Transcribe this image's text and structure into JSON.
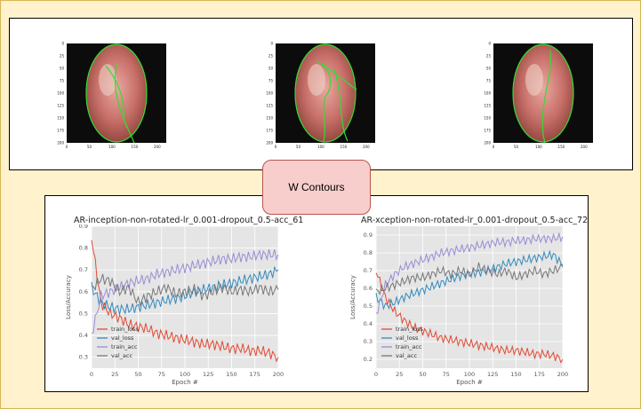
{
  "center_label": "W Contours",
  "images": [
    {
      "name": "endoscopy-image-1",
      "x_ticks": [
        "0",
        "50",
        "100",
        "150",
        "200"
      ],
      "y_ticks": [
        "0",
        "25",
        "50",
        "75",
        "100",
        "125",
        "150",
        "175",
        "200"
      ]
    },
    {
      "name": "endoscopy-image-2",
      "x_ticks": [
        "0",
        "50",
        "100",
        "150",
        "200"
      ],
      "y_ticks": [
        "0",
        "25",
        "50",
        "75",
        "100",
        "125",
        "150",
        "175",
        "200"
      ]
    },
    {
      "name": "endoscopy-image-3",
      "x_ticks": [
        "0",
        "50",
        "100",
        "150",
        "200"
      ],
      "y_ticks": [
        "0",
        "25",
        "50",
        "75",
        "100",
        "125",
        "150",
        "175",
        "200"
      ]
    }
  ],
  "colors": {
    "train_loss": "#e24a33",
    "val_loss": "#348abd",
    "train_acc": "#988ed5",
    "val_acc": "#777777",
    "contour": "#33dd33"
  },
  "chart_data": [
    {
      "type": "line",
      "title": "AR-inception-non-rotated-lr_0.001-dropout_0.5-acc_61",
      "xlabel": "Epoch #",
      "ylabel": "Loss/Accuracy",
      "xlim": [
        0,
        200
      ],
      "ylim": [
        0.25,
        0.9
      ],
      "x_ticks": [
        0,
        25,
        50,
        75,
        100,
        125,
        150,
        175,
        200
      ],
      "y_ticks": [
        0.3,
        0.4,
        0.5,
        0.6,
        0.7,
        0.8,
        0.9
      ],
      "grid": true,
      "legend": "lower-left",
      "x": [
        0,
        10,
        20,
        30,
        40,
        50,
        60,
        70,
        80,
        90,
        100,
        110,
        120,
        130,
        140,
        150,
        160,
        170,
        180,
        190,
        200
      ],
      "series": [
        {
          "name": "train_loss",
          "values": [
            0.85,
            0.55,
            0.5,
            0.48,
            0.45,
            0.44,
            0.43,
            0.41,
            0.4,
            0.39,
            0.38,
            0.37,
            0.36,
            0.36,
            0.35,
            0.34,
            0.34,
            0.33,
            0.33,
            0.32,
            0.3
          ]
        },
        {
          "name": "val_loss",
          "values": [
            0.62,
            0.55,
            0.53,
            0.52,
            0.52,
            0.53,
            0.54,
            0.55,
            0.56,
            0.57,
            0.58,
            0.6,
            0.61,
            0.62,
            0.63,
            0.64,
            0.65,
            0.66,
            0.67,
            0.68,
            0.7
          ]
        },
        {
          "name": "train_acc",
          "values": [
            0.4,
            0.58,
            0.6,
            0.62,
            0.64,
            0.65,
            0.66,
            0.68,
            0.69,
            0.7,
            0.71,
            0.72,
            0.73,
            0.74,
            0.75,
            0.75,
            0.76,
            0.76,
            0.77,
            0.77,
            0.77
          ]
        },
        {
          "name": "val_acc",
          "values": [
            0.61,
            0.66,
            0.65,
            0.6,
            0.62,
            0.55,
            0.58,
            0.6,
            0.62,
            0.59,
            0.6,
            0.61,
            0.58,
            0.6,
            0.62,
            0.6,
            0.61,
            0.6,
            0.62,
            0.6,
            0.61
          ]
        }
      ]
    },
    {
      "type": "line",
      "title": "AR-xception-non-rotated-lr_0.001-dropout_0.5-acc_72",
      "xlabel": "Epoch #",
      "ylabel": "Loss/Accuracy",
      "xlim": [
        0,
        200
      ],
      "ylim": [
        0.15,
        0.95
      ],
      "x_ticks": [
        0,
        25,
        50,
        75,
        100,
        125,
        150,
        175,
        200
      ],
      "y_ticks": [
        0.2,
        0.3,
        0.4,
        0.5,
        0.6,
        0.7,
        0.8,
        0.9
      ],
      "grid": true,
      "legend": "lower-left",
      "x": [
        0,
        10,
        20,
        30,
        40,
        50,
        60,
        70,
        80,
        90,
        100,
        110,
        120,
        130,
        140,
        150,
        160,
        170,
        180,
        190,
        200
      ],
      "series": [
        {
          "name": "train_loss",
          "values": [
            0.7,
            0.55,
            0.47,
            0.42,
            0.38,
            0.36,
            0.34,
            0.32,
            0.31,
            0.3,
            0.29,
            0.28,
            0.27,
            0.26,
            0.25,
            0.25,
            0.24,
            0.23,
            0.23,
            0.22,
            0.2
          ]
        },
        {
          "name": "val_loss",
          "values": [
            0.55,
            0.5,
            0.52,
            0.55,
            0.57,
            0.59,
            0.61,
            0.63,
            0.65,
            0.67,
            0.68,
            0.69,
            0.7,
            0.72,
            0.74,
            0.75,
            0.76,
            0.77,
            0.78,
            0.79,
            0.73
          ]
        },
        {
          "name": "train_acc",
          "values": [
            0.45,
            0.62,
            0.68,
            0.72,
            0.74,
            0.76,
            0.78,
            0.8,
            0.81,
            0.82,
            0.83,
            0.84,
            0.85,
            0.86,
            0.86,
            0.87,
            0.87,
            0.88,
            0.88,
            0.88,
            0.89
          ]
        },
        {
          "name": "val_acc",
          "values": [
            0.58,
            0.6,
            0.62,
            0.64,
            0.66,
            0.66,
            0.68,
            0.7,
            0.68,
            0.7,
            0.68,
            0.72,
            0.7,
            0.68,
            0.7,
            0.66,
            0.68,
            0.7,
            0.68,
            0.7,
            0.72
          ]
        }
      ]
    }
  ]
}
